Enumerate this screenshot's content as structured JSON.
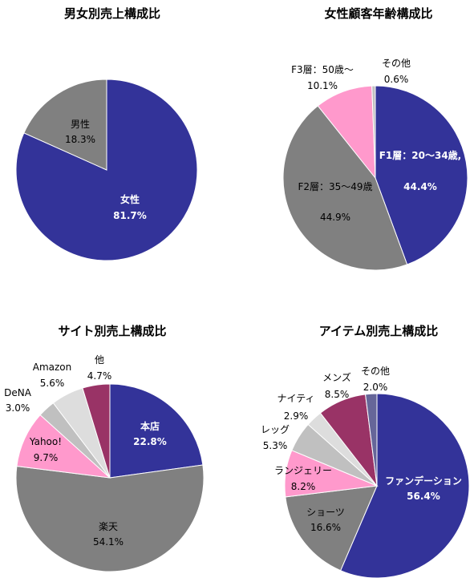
{
  "chart_data": [
    {
      "type": "pie",
      "title": "男女別売上構成比",
      "slices": [
        {
          "label": "女性",
          "value": 81.7,
          "value_label": "81.7%",
          "color": "#333399"
        },
        {
          "label": "男性",
          "value": 18.3,
          "value_label": "18.3%",
          "color": "#808080"
        }
      ]
    },
    {
      "type": "pie",
      "title": "女性顧客年齢構成比",
      "slices": [
        {
          "label": "F1層：20〜34歳,",
          "value": 44.4,
          "value_label": "44.4%",
          "color": "#333399"
        },
        {
          "label": "F2層：35〜49歳",
          "value": 44.9,
          "value_label": "44.9%",
          "color": "#808080"
        },
        {
          "label": "F3層：50歳〜",
          "value": 10.1,
          "value_label": "10.1%",
          "color": "#ff99cc"
        },
        {
          "label": "その他",
          "value": 0.6,
          "value_label": "0.6%",
          "color": "#c0c0c0"
        }
      ]
    },
    {
      "type": "pie",
      "title": "サイト別売上構成比",
      "slices": [
        {
          "label": "本店",
          "value": 22.8,
          "value_label": "22.8%",
          "color": "#333399"
        },
        {
          "label": "楽天",
          "value": 54.1,
          "value_label": "54.1%",
          "color": "#808080"
        },
        {
          "label": "Yahoo!",
          "value": 9.7,
          "value_label": "9.7%",
          "color": "#ff99cc"
        },
        {
          "label": "DeNA",
          "value": 3.0,
          "value_label": "3.0%",
          "color": "#c0c0c0"
        },
        {
          "label": "Amazon",
          "value": 5.6,
          "value_label": "5.6%",
          "color": "#dddddd"
        },
        {
          "label": "他",
          "value": 4.7,
          "value_label": "4.7%",
          "color": "#993366"
        }
      ]
    },
    {
      "type": "pie",
      "title": "アイテム別売上構成比",
      "slices": [
        {
          "label": "ファンデーション",
          "value": 56.4,
          "value_label": "56.4%",
          "color": "#333399"
        },
        {
          "label": "ショーツ",
          "value": 16.6,
          "value_label": "16.6%",
          "color": "#808080"
        },
        {
          "label": "ランジェリー",
          "value": 8.2,
          "value_label": "8.2%",
          "color": "#ff99cc"
        },
        {
          "label": "レッグ",
          "value": 5.3,
          "value_label": "5.3%",
          "color": "#c0c0c0"
        },
        {
          "label": "ナイティ",
          "value": 2.9,
          "value_label": "2.9%",
          "color": "#dddddd"
        },
        {
          "label": "メンズ",
          "value": 8.5,
          "value_label": "8.5%",
          "color": "#993366"
        },
        {
          "label": "その他",
          "value": 2.0,
          "value_label": "2.0%",
          "color": "#666699"
        }
      ]
    }
  ]
}
